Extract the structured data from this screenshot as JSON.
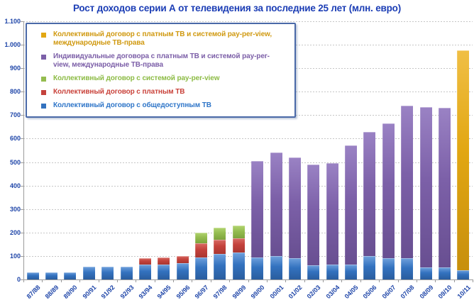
{
  "chart_data": {
    "type": "bar",
    "stacked": true,
    "title": "Рост доходов серии А от телевидения за последние 25 лет (млн. евро)",
    "units": "млн. евро",
    "grid": "horizontal-dotted",
    "legend_position": "top-left",
    "legend_order": "top series first",
    "ylim": [
      0,
      1100
    ],
    "yticks": {
      "values": [
        0,
        100,
        200,
        300,
        400,
        500,
        600,
        700,
        800,
        900,
        1000,
        1100
      ],
      "labels": [
        "0",
        "100",
        "200",
        "300",
        "400",
        "500",
        "600",
        "700",
        "800",
        "900",
        "1.000",
        "1.100"
      ]
    },
    "categories": [
      "87/88",
      "88/89",
      "89/90",
      "90/91",
      "91/92",
      "92/93",
      "93/94",
      "94/95",
      "95/96",
      "96/97",
      "97/98",
      "98/99",
      "99/00",
      "00/01",
      "01/02",
      "02/03",
      "03/04",
      "04/05",
      "05/06",
      "06/07",
      "07/08",
      "08/09",
      "09/10",
      "10/11"
    ],
    "series": [
      {
        "name": "Коллективный договор с общедоступным ТВ",
        "color": "#3372bf",
        "color_light": "#6fa0dc",
        "color_dark": "#2a5d9e",
        "text_color": "#2e75c8",
        "values": [
          30,
          30,
          30,
          55,
          55,
          55,
          65,
          65,
          70,
          95,
          110,
          115,
          95,
          100,
          90,
          60,
          65,
          65,
          100,
          90,
          90,
          50,
          50,
          40
        ]
      },
      {
        "name": "Коллективный договор с платным ТВ",
        "color": "#c4423c",
        "color_light": "#d76a63",
        "color_dark": "#a93631",
        "text_color": "#c9423a",
        "values": [
          0,
          0,
          0,
          0,
          0,
          0,
          25,
          30,
          30,
          60,
          60,
          60,
          0,
          0,
          0,
          0,
          0,
          0,
          0,
          0,
          0,
          0,
          0,
          0
        ]
      },
      {
        "name": "Коллективный договор с системой pay-per-view",
        "color": "#94bc4f",
        "color_light": "#b2d470",
        "color_dark": "#7da33d",
        "text_color": "#8cbb44",
        "values": [
          0,
          0,
          0,
          0,
          0,
          0,
          0,
          0,
          0,
          45,
          50,
          55,
          0,
          0,
          0,
          0,
          0,
          0,
          0,
          0,
          0,
          0,
          0,
          0
        ]
      },
      {
        "name": "Индивидуальные договора с платным ТВ и системой pay-per-view, международные ТВ-права",
        "color": "#7c60a8",
        "color_light": "#9a82c4",
        "color_dark": "#684f91",
        "text_color": "#7b5ea7",
        "values": [
          0,
          0,
          0,
          0,
          0,
          0,
          0,
          0,
          0,
          0,
          0,
          0,
          410,
          440,
          430,
          430,
          430,
          505,
          530,
          575,
          650,
          685,
          680,
          0
        ]
      },
      {
        "name": "Коллективный договор с платным ТВ и системой pay-per-view, международные ТВ-права",
        "color": "#e2a713",
        "color_light": "#f0bf45",
        "color_dark": "#c78f0c",
        "text_color": "#d09910",
        "values": [
          0,
          0,
          0,
          0,
          0,
          0,
          0,
          0,
          0,
          0,
          0,
          0,
          0,
          0,
          0,
          0,
          0,
          0,
          0,
          0,
          0,
          0,
          0,
          935
        ]
      }
    ]
  }
}
